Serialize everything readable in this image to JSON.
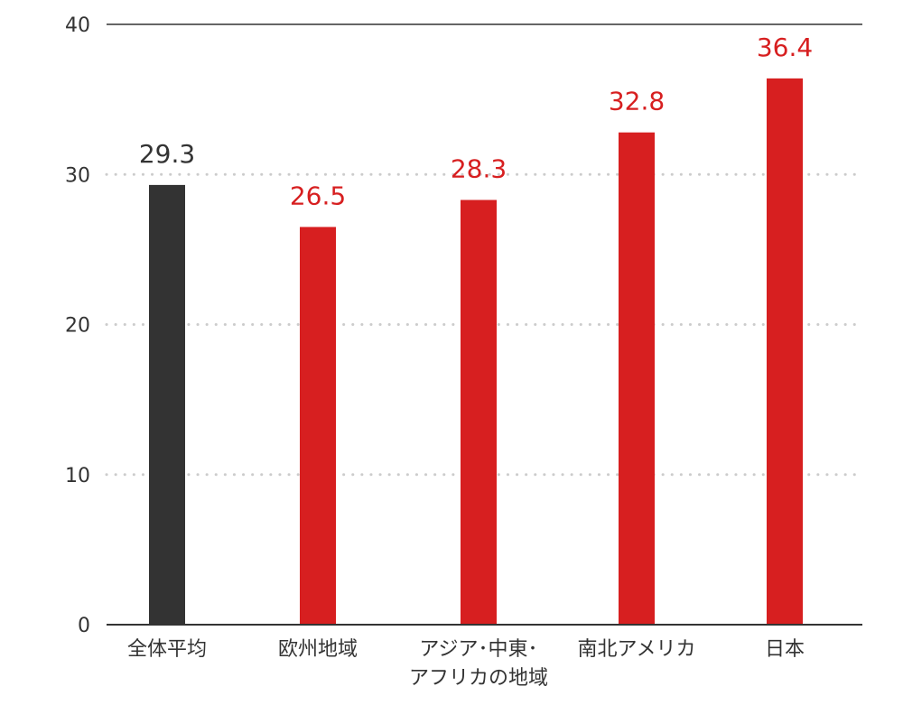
{
  "chart_data": {
    "type": "bar",
    "title": "",
    "xlabel": "",
    "ylabel": "",
    "ylim": [
      0,
      40
    ],
    "yticks": [
      "0",
      "10",
      "20",
      "30",
      "40"
    ],
    "grid": true,
    "categories": [
      "全体平均",
      "欧州地域",
      "アジア･中東･\nアフリカの地域",
      "南北アメリカ",
      "日本"
    ],
    "values": [
      29.3,
      26.5,
      28.3,
      32.8,
      36.4
    ],
    "value_labels": [
      "29.3",
      "26.5",
      "28.3",
      "32.8",
      "36.4"
    ],
    "colors": [
      "#333333",
      "#d71f20",
      "#d71f20",
      "#d71f20",
      "#d71f20"
    ]
  }
}
